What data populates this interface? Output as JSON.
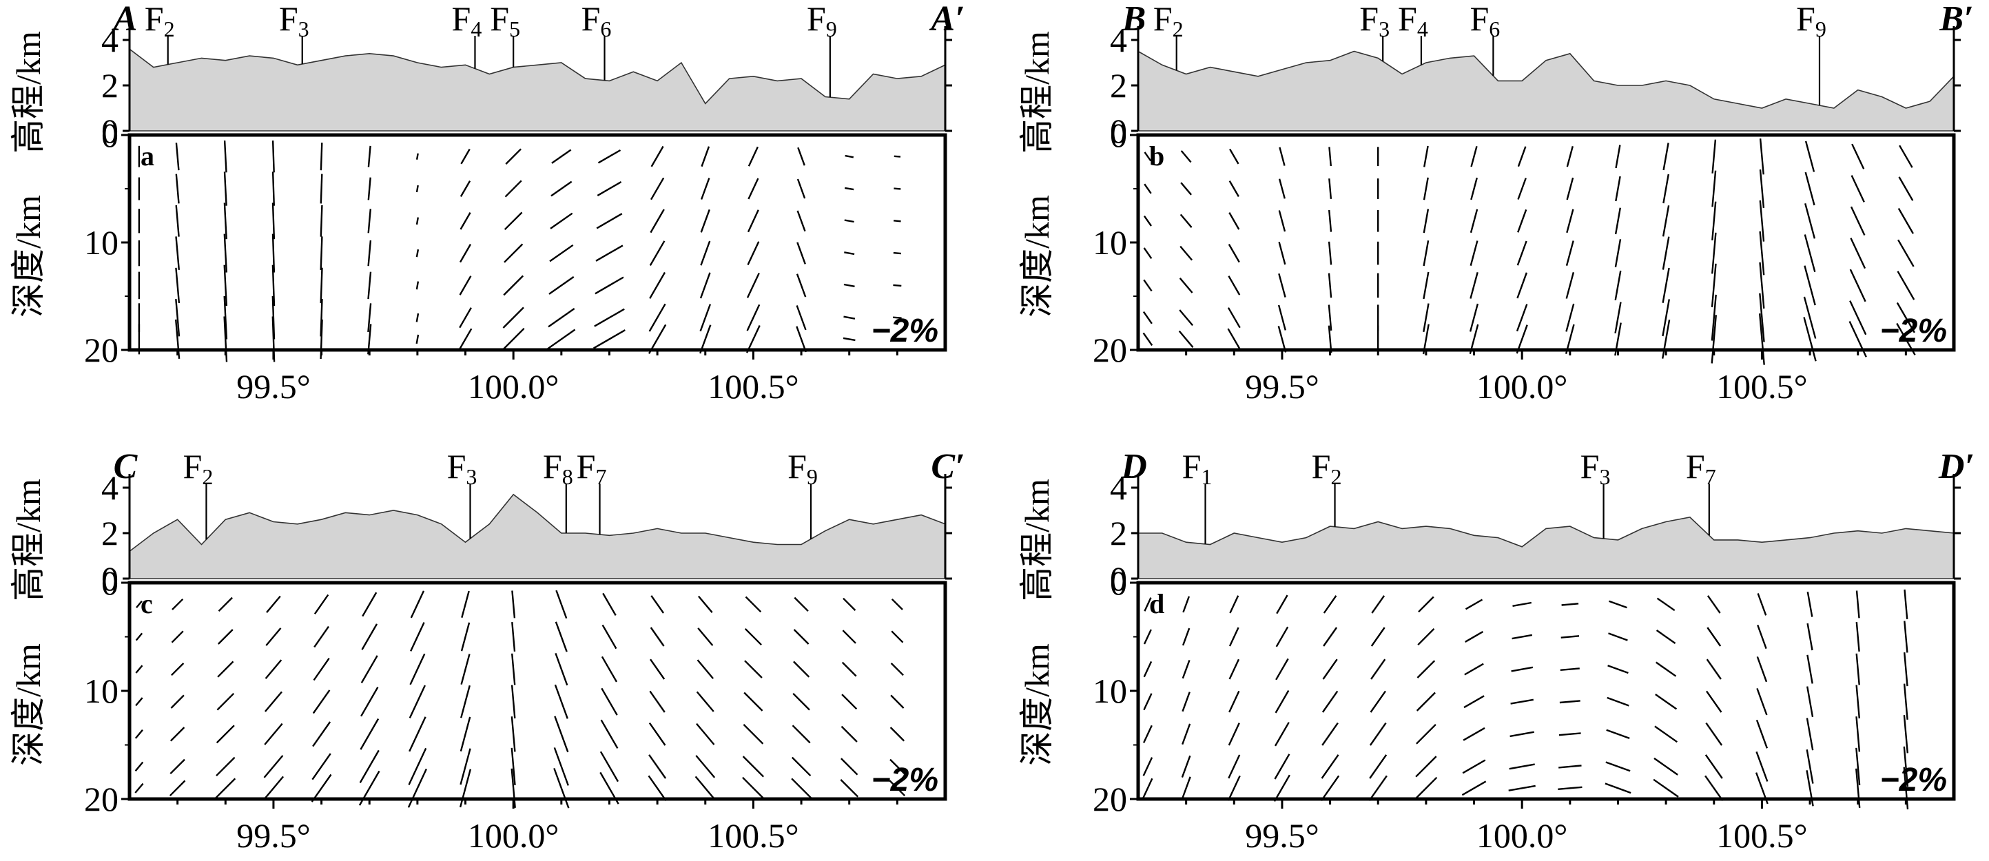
{
  "figure": {
    "elev_ylabel": "高程/km",
    "depth_ylabel": "深度/km",
    "elev_ticks": [
      "4",
      "2",
      "0"
    ],
    "depth_ticks": [
      "0",
      "10",
      "20"
    ],
    "lon_ticks": [
      "99.5°",
      "100.0°",
      "100.5°"
    ],
    "scale_label": "−2%"
  },
  "chart_data": [
    {
      "type": "profile",
      "panel": "a",
      "start_label": "A",
      "end_label": "A′",
      "x_range": [
        99.2,
        100.9
      ],
      "elev_ylim": [
        0,
        4
      ],
      "depth_ylim": [
        0,
        20
      ],
      "xlabel_ticks": [
        99.5,
        100.0,
        100.5
      ],
      "faults": [
        {
          "name": "F",
          "sub": "2",
          "lon": 99.28
        },
        {
          "name": "F",
          "sub": "3",
          "lon": 99.56
        },
        {
          "name": "F",
          "sub": "4",
          "lon": 99.92
        },
        {
          "name": "F",
          "sub": "5",
          "lon": 100.0
        },
        {
          "name": "F",
          "sub": "6",
          "lon": 100.19
        },
        {
          "name": "F",
          "sub": "9",
          "lon": 100.66
        }
      ],
      "elevation": {
        "lon": [
          99.2,
          99.25,
          99.3,
          99.35,
          99.4,
          99.45,
          99.5,
          99.55,
          99.6,
          99.65,
          99.7,
          99.75,
          99.8,
          99.85,
          99.9,
          99.95,
          100.0,
          100.05,
          100.1,
          100.15,
          100.2,
          100.25,
          100.3,
          100.35,
          100.4,
          100.45,
          100.5,
          100.55,
          100.6,
          100.65,
          100.7,
          100.75,
          100.8,
          100.85,
          100.9
        ],
        "km": [
          3.6,
          2.8,
          3.0,
          3.2,
          3.1,
          3.3,
          3.2,
          2.9,
          3.1,
          3.3,
          3.4,
          3.3,
          3.0,
          2.8,
          2.9,
          2.5,
          2.8,
          2.9,
          3.0,
          2.3,
          2.2,
          2.6,
          2.2,
          3.0,
          1.2,
          2.3,
          2.4,
          2.2,
          2.3,
          1.5,
          1.4,
          2.5,
          2.3,
          2.4,
          2.9
        ]
      },
      "vector_field": {
        "lon": [
          99.22,
          99.3,
          99.4,
          99.5,
          99.6,
          99.7,
          99.8,
          99.9,
          100.0,
          100.1,
          100.2,
          100.3,
          100.4,
          100.5,
          100.6,
          100.7,
          100.8
        ],
        "depth_km": [
          2,
          5,
          8,
          11,
          14,
          17,
          19
        ],
        "azimuth_deg": [
          0,
          5,
          3,
          2,
          -2,
          -5,
          -10,
          -30,
          -45,
          -55,
          -60,
          -30,
          -20,
          -25,
          20,
          80,
          85
        ],
        "magnitude_pct": [
          1.0,
          1.3,
          1.5,
          1.5,
          1.3,
          1.0,
          0.3,
          0.8,
          1.0,
          1.1,
          1.2,
          1.1,
          1.0,
          1.0,
          0.9,
          0.4,
          0.3
        ]
      },
      "scale_label": "−2%"
    },
    {
      "type": "profile",
      "panel": "b",
      "start_label": "B",
      "end_label": "B′",
      "x_range": [
        99.2,
        100.9
      ],
      "elev_ylim": [
        0,
        4
      ],
      "depth_ylim": [
        0,
        20
      ],
      "xlabel_ticks": [
        99.5,
        100.0,
        100.5
      ],
      "faults": [
        {
          "name": "F",
          "sub": "2",
          "lon": 99.28
        },
        {
          "name": "F",
          "sub": "3",
          "lon": 99.71
        },
        {
          "name": "F",
          "sub": "4",
          "lon": 99.79
        },
        {
          "name": "F",
          "sub": "6",
          "lon": 99.94
        },
        {
          "name": "F",
          "sub": "9",
          "lon": 100.62
        }
      ],
      "elevation": {
        "lon": [
          99.2,
          99.25,
          99.3,
          99.35,
          99.4,
          99.45,
          99.5,
          99.55,
          99.6,
          99.65,
          99.7,
          99.75,
          99.8,
          99.85,
          99.9,
          99.95,
          100.0,
          100.05,
          100.1,
          100.15,
          100.2,
          100.25,
          100.3,
          100.35,
          100.4,
          100.45,
          100.5,
          100.55,
          100.6,
          100.65,
          100.7,
          100.75,
          100.8,
          100.85,
          100.9
        ],
        "km": [
          3.5,
          2.9,
          2.5,
          2.8,
          2.6,
          2.4,
          2.7,
          3.0,
          3.1,
          3.5,
          3.2,
          2.5,
          3.0,
          3.2,
          3.3,
          2.2,
          2.2,
          3.1,
          3.4,
          2.2,
          2.0,
          2.0,
          2.2,
          2.0,
          1.4,
          1.2,
          1.0,
          1.4,
          1.2,
          1.0,
          1.8,
          1.5,
          1.0,
          1.3,
          2.4
        ]
      },
      "vector_field": {
        "lon": [
          99.22,
          99.3,
          99.4,
          99.5,
          99.6,
          99.7,
          99.8,
          99.9,
          100.0,
          100.1,
          100.2,
          100.3,
          100.4,
          100.5,
          100.6,
          100.7,
          100.8
        ],
        "depth_km": [
          2,
          5,
          8,
          11,
          14,
          17,
          19
        ],
        "azimuth_deg": [
          35,
          40,
          30,
          15,
          5,
          0,
          -10,
          -15,
          -20,
          -15,
          -10,
          -10,
          -5,
          5,
          15,
          25,
          30
        ],
        "magnitude_pct": [
          0.5,
          0.7,
          0.8,
          0.9,
          0.9,
          0.9,
          1.0,
          1.0,
          1.0,
          1.0,
          1.1,
          1.3,
          1.6,
          1.7,
          1.5,
          1.3,
          1.2
        ]
      },
      "scale_label": "−2%"
    },
    {
      "type": "profile",
      "panel": "c",
      "start_label": "C",
      "end_label": "C′",
      "x_range": [
        99.2,
        100.9
      ],
      "elev_ylim": [
        0,
        4
      ],
      "depth_ylim": [
        0,
        20
      ],
      "xlabel_ticks": [
        99.5,
        100.0,
        100.5
      ],
      "faults": [
        {
          "name": "F",
          "sub": "2",
          "lon": 99.36
        },
        {
          "name": "F",
          "sub": "3",
          "lon": 99.91
        },
        {
          "name": "F",
          "sub": "8",
          "lon": 100.11
        },
        {
          "name": "F",
          "sub": "7",
          "lon": 100.18
        },
        {
          "name": "F",
          "sub": "9",
          "lon": 100.62
        }
      ],
      "elevation": {
        "lon": [
          99.2,
          99.25,
          99.3,
          99.35,
          99.4,
          99.45,
          99.5,
          99.55,
          99.6,
          99.65,
          99.7,
          99.75,
          99.8,
          99.85,
          99.9,
          99.95,
          100.0,
          100.05,
          100.1,
          100.15,
          100.2,
          100.25,
          100.3,
          100.35,
          100.4,
          100.45,
          100.5,
          100.55,
          100.6,
          100.65,
          100.7,
          100.75,
          100.8,
          100.85,
          100.9
        ],
        "km": [
          1.2,
          2.0,
          2.6,
          1.5,
          2.6,
          2.9,
          2.5,
          2.4,
          2.6,
          2.9,
          2.8,
          3.0,
          2.8,
          2.4,
          1.6,
          2.4,
          3.7,
          2.9,
          2.0,
          2.0,
          1.9,
          2.0,
          2.2,
          2.0,
          2.0,
          1.8,
          1.6,
          1.5,
          1.5,
          2.1,
          2.6,
          2.4,
          2.6,
          2.8,
          2.4
        ]
      },
      "vector_field": {
        "lon": [
          99.22,
          99.3,
          99.4,
          99.5,
          99.6,
          99.7,
          99.8,
          99.9,
          100.0,
          100.1,
          100.2,
          100.3,
          100.4,
          100.5,
          100.6,
          100.7,
          100.8
        ],
        "depth_km": [
          2,
          5,
          8,
          11,
          14,
          17,
          19
        ],
        "azimuth_deg": [
          -40,
          -45,
          -45,
          -40,
          -35,
          -30,
          -25,
          -15,
          5,
          20,
          30,
          35,
          40,
          45,
          45,
          45,
          45
        ],
        "magnitude_pct": [
          0.4,
          0.7,
          0.9,
          1.0,
          1.1,
          1.3,
          1.4,
          1.3,
          1.3,
          1.4,
          1.2,
          1.0,
          1.0,
          1.0,
          0.9,
          0.8,
          0.7
        ]
      },
      "scale_label": "−2%"
    },
    {
      "type": "profile",
      "panel": "d",
      "start_label": "D",
      "end_label": "D′",
      "x_range": [
        99.2,
        100.9
      ],
      "elev_ylim": [
        0,
        4
      ],
      "depth_ylim": [
        0,
        20
      ],
      "xlabel_ticks": [
        99.5,
        100.0,
        100.5
      ],
      "faults": [
        {
          "name": "F",
          "sub": "1",
          "lon": 99.34
        },
        {
          "name": "F",
          "sub": "2",
          "lon": 99.61
        },
        {
          "name": "F",
          "sub": "3",
          "lon": 100.17
        },
        {
          "name": "F",
          "sub": "7",
          "lon": 100.39
        }
      ],
      "elevation": {
        "lon": [
          99.2,
          99.25,
          99.3,
          99.35,
          99.4,
          99.45,
          99.5,
          99.55,
          99.6,
          99.65,
          99.7,
          99.75,
          99.8,
          99.85,
          99.9,
          99.95,
          100.0,
          100.05,
          100.1,
          100.15,
          100.2,
          100.25,
          100.3,
          100.35,
          100.4,
          100.45,
          100.5,
          100.55,
          100.6,
          100.65,
          100.7,
          100.75,
          100.8,
          100.85,
          100.9
        ],
        "km": [
          2.0,
          2.0,
          1.6,
          1.5,
          2.0,
          1.8,
          1.6,
          1.8,
          2.3,
          2.2,
          2.5,
          2.2,
          2.3,
          2.2,
          1.9,
          1.8,
          1.4,
          2.2,
          2.3,
          1.8,
          1.7,
          2.2,
          2.5,
          2.7,
          1.7,
          1.7,
          1.6,
          1.7,
          1.8,
          2.0,
          2.1,
          2.0,
          2.2,
          2.1,
          2.0
        ]
      },
      "vector_field": {
        "lon": [
          99.22,
          99.3,
          99.4,
          99.5,
          99.6,
          99.7,
          99.8,
          99.9,
          100.0,
          100.1,
          100.2,
          100.3,
          100.4,
          100.5,
          100.6,
          100.7,
          100.8
        ],
        "depth_km": [
          2,
          5,
          8,
          11,
          14,
          17,
          19
        ],
        "azimuth_deg": [
          -25,
          -20,
          -25,
          -30,
          -35,
          -35,
          -45,
          -60,
          -80,
          -85,
          70,
          55,
          35,
          20,
          10,
          5,
          5
        ],
        "magnitude_pct": [
          0.7,
          0.8,
          0.9,
          1.0,
          1.0,
          1.0,
          1.0,
          0.9,
          0.9,
          0.8,
          0.9,
          1.0,
          1.0,
          1.1,
          1.2,
          1.3,
          1.4
        ]
      },
      "scale_label": "−2%"
    }
  ]
}
